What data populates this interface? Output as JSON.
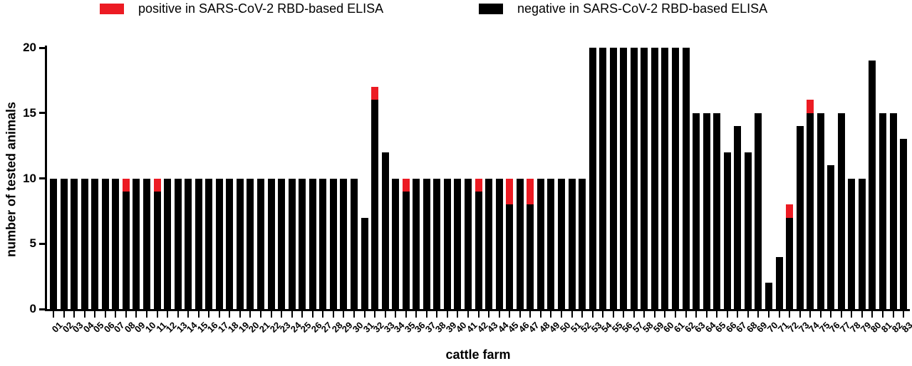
{
  "legend": [
    {
      "key": "positive",
      "label": "positive in SARS-CoV-2 RBD-based ELISA",
      "color": "#EC1B23"
    },
    {
      "key": "negative",
      "label": "negative in SARS-CoV-2 RBD-based ELISA",
      "color": "#000000"
    }
  ],
  "axes": {
    "x_title": "cattle farm",
    "y_title": "number of tested animals"
  },
  "chart_data": {
    "type": "bar",
    "stacked": true,
    "title": "",
    "xlabel": "cattle farm",
    "ylabel": "number of tested animals",
    "ylim": [
      0,
      20
    ],
    "yticks": [
      0,
      5,
      10,
      15,
      20
    ],
    "grid": false,
    "legend_position": "top",
    "categories": [
      "01",
      "02",
      "03",
      "04",
      "05",
      "06",
      "07",
      "08",
      "09",
      "10",
      "11",
      "12",
      "13",
      "14",
      "15",
      "16",
      "17",
      "18",
      "19",
      "20",
      "21",
      "22",
      "23",
      "24",
      "25",
      "26",
      "27",
      "28",
      "29",
      "30",
      "31",
      "32",
      "33",
      "34",
      "35",
      "36",
      "37",
      "38",
      "39",
      "40",
      "41",
      "42",
      "43",
      "44",
      "45",
      "46",
      "47",
      "48",
      "49",
      "50",
      "51",
      "52",
      "53",
      "54",
      "55",
      "56",
      "57",
      "58",
      "59",
      "60",
      "61",
      "62",
      "63",
      "64",
      "65",
      "66",
      "67",
      "68",
      "69",
      "70",
      "71",
      "72",
      "73",
      "74",
      "75",
      "76",
      "77",
      "78",
      "79",
      "80",
      "81",
      "82",
      "83"
    ],
    "series": [
      {
        "name": "negative in SARS-CoV-2 RBD-based ELISA",
        "color": "#000000",
        "values": [
          10,
          10,
          10,
          10,
          10,
          10,
          10,
          9,
          10,
          10,
          9,
          10,
          10,
          10,
          10,
          10,
          10,
          10,
          10,
          10,
          10,
          10,
          10,
          10,
          10,
          10,
          10,
          10,
          10,
          10,
          7,
          16,
          12,
          10,
          9,
          10,
          10,
          10,
          10,
          10,
          10,
          9,
          10,
          10,
          8,
          10,
          8,
          10,
          10,
          10,
          10,
          10,
          20,
          20,
          20,
          20,
          20,
          20,
          20,
          20,
          20,
          20,
          15,
          15,
          15,
          12,
          14,
          12,
          15,
          2,
          4,
          7,
          14,
          15,
          15,
          11,
          15,
          10,
          10,
          19,
          15,
          15,
          13
        ]
      },
      {
        "name": "positive in SARS-CoV-2 RBD-based ELISA",
        "color": "#EC1B23",
        "values": [
          0,
          0,
          0,
          0,
          0,
          0,
          0,
          1,
          0,
          0,
          1,
          0,
          0,
          0,
          0,
          0,
          0,
          0,
          0,
          0,
          0,
          0,
          0,
          0,
          0,
          0,
          0,
          0,
          0,
          0,
          0,
          1,
          0,
          0,
          1,
          0,
          0,
          0,
          0,
          0,
          0,
          1,
          0,
          0,
          2,
          0,
          2,
          0,
          0,
          0,
          0,
          0,
          0,
          0,
          0,
          0,
          0,
          0,
          0,
          0,
          0,
          0,
          0,
          0,
          0,
          0,
          0,
          0,
          0,
          0,
          0,
          1,
          0,
          1,
          0,
          0,
          0,
          0,
          0,
          0,
          0,
          0,
          0
        ]
      }
    ]
  }
}
